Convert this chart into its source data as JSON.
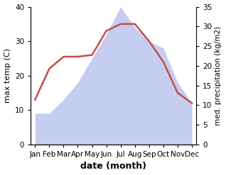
{
  "months": [
    "Jan",
    "Feb",
    "Mar",
    "Apr",
    "May",
    "Jun",
    "Jul",
    "Aug",
    "Sep",
    "Oct",
    "Nov",
    "Dec"
  ],
  "temperature": [
    13,
    22,
    25.5,
    25.5,
    26,
    33,
    35,
    35,
    30,
    24,
    15,
    12
  ],
  "precipitation_left": [
    9,
    9,
    13,
    18,
    25,
    32,
    40,
    34,
    30,
    28,
    18,
    12
  ],
  "temp_color": "#c0504d",
  "precip_fill_color": "#c5cdf0",
  "ylabel_left": "max temp (C)",
  "ylabel_right": "med. precipitation (kg/m2)",
  "xlabel": "date (month)",
  "ylim_left": [
    0,
    40
  ],
  "ylim_right": [
    0,
    35
  ],
  "yticks_left": [
    0,
    10,
    20,
    30,
    40
  ],
  "yticks_right": [
    0,
    5,
    10,
    15,
    20,
    25,
    30,
    35
  ],
  "label_fontsize": 8,
  "tick_fontsize": 7.5,
  "xlabel_fontsize": 9
}
